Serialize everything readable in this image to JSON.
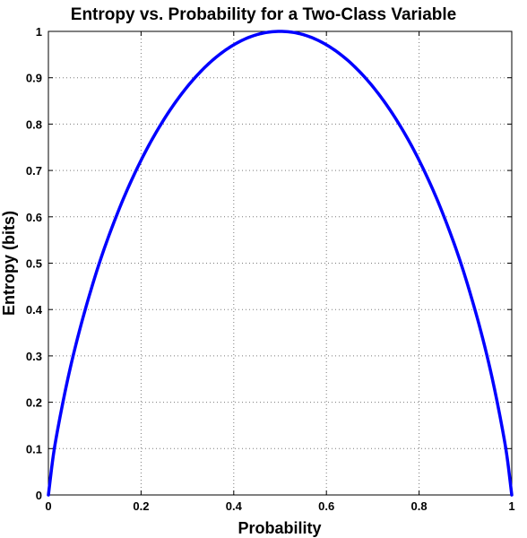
{
  "chart_data": {
    "type": "line",
    "title": "Entropy vs. Probability for a Two-Class Variable",
    "xlabel": "Probability",
    "ylabel": "Entropy (bits)",
    "xlim": [
      0,
      1
    ],
    "ylim": [
      0,
      1
    ],
    "xticks": [
      0,
      0.2,
      0.4,
      0.6,
      0.8,
      1
    ],
    "xtick_labels": [
      "0",
      "0.2",
      "0.4",
      "0.6",
      "0.8",
      "1"
    ],
    "yticks": [
      0,
      0.1,
      0.2,
      0.3,
      0.4,
      0.5,
      0.6,
      0.7,
      0.8,
      0.9,
      1
    ],
    "ytick_labels": [
      "0",
      "0.1",
      "0.2",
      "0.3",
      "0.4",
      "0.5",
      "0.6",
      "0.7",
      "0.8",
      "0.9",
      "1"
    ],
    "grid": true,
    "series": [
      {
        "color": "#0000ff",
        "x": [
          0,
          0.01,
          0.02,
          0.05,
          0.1,
          0.15,
          0.2,
          0.25,
          0.3,
          0.35,
          0.4,
          0.45,
          0.5,
          0.55,
          0.6,
          0.65,
          0.7,
          0.75,
          0.8,
          0.85,
          0.9,
          0.95,
          0.98,
          0.99,
          1
        ],
        "y": [
          0,
          0.081,
          0.141,
          0.286,
          0.469,
          0.61,
          0.722,
          0.811,
          0.881,
          0.934,
          0.971,
          0.993,
          1.0,
          0.993,
          0.971,
          0.934,
          0.881,
          0.811,
          0.722,
          0.61,
          0.469,
          0.286,
          0.141,
          0.081,
          0
        ]
      }
    ]
  }
}
